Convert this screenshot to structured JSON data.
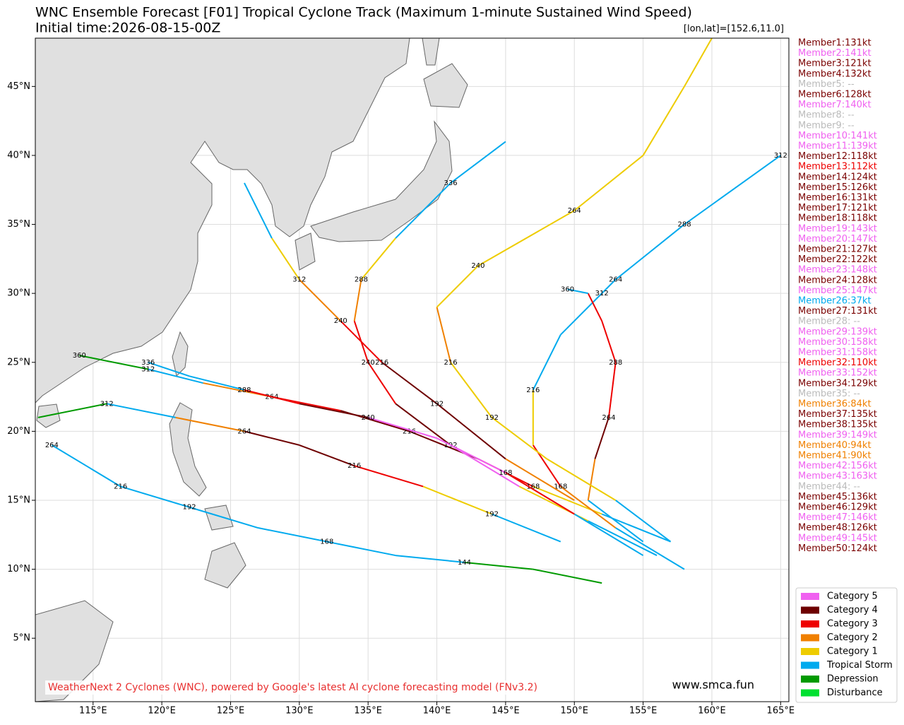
{
  "chart_data": {
    "type": "track-map",
    "title": "WNC Ensemble Forecast [F01] Tropical Cyclone Track (Maximum 1-minute Sustained Wind Speed)",
    "subtitle": "Initial time:2026-08-15-00Z",
    "cursor": "[lon,lat]=[152.6,11.0]",
    "credit": "WeatherNext 2 Cyclones (WNC), powered by Google's latest AI cyclone forecasting model (FNv3.2)",
    "site": "www.smca.fun",
    "xlim": [
      110.8,
      165.6
    ],
    "ylim": [
      0.4,
      48.5
    ],
    "grid": true,
    "xticks": [
      {
        "value": 115,
        "label": "115°E"
      },
      {
        "value": 120,
        "label": "120°E"
      },
      {
        "value": 125,
        "label": "125°E"
      },
      {
        "value": 130,
        "label": "130°E"
      },
      {
        "value": 135,
        "label": "135°E"
      },
      {
        "value": 140,
        "label": "140°E"
      },
      {
        "value": 145,
        "label": "145°E"
      },
      {
        "value": 150,
        "label": "150°E"
      },
      {
        "value": 155,
        "label": "155°E"
      },
      {
        "value": 160,
        "label": "160°E"
      },
      {
        "value": 165,
        "label": "165°E"
      }
    ],
    "yticks": [
      {
        "value": 5,
        "label": "5°N"
      },
      {
        "value": 10,
        "label": "10°N"
      },
      {
        "value": 15,
        "label": "15°N"
      },
      {
        "value": 20,
        "label": "20°N"
      },
      {
        "value": 25,
        "label": "25°N"
      },
      {
        "value": 30,
        "label": "30°N"
      },
      {
        "value": 35,
        "label": "35°N"
      },
      {
        "value": 40,
        "label": "40°N"
      },
      {
        "value": 45,
        "label": "45°N"
      }
    ],
    "legend": [
      {
        "name": "Category 5",
        "color": "#f060f0"
      },
      {
        "name": "Category 4",
        "color": "#6e0000"
      },
      {
        "name": "Category 3",
        "color": "#ee0000"
      },
      {
        "name": "Category 2",
        "color": "#f08000"
      },
      {
        "name": "Category 1",
        "color": "#eecc00"
      },
      {
        "name": "Tropical Storm",
        "color": "#00aaee"
      },
      {
        "name": "Depression",
        "color": "#009a00"
      },
      {
        "name": "Disturbance",
        "color": "#00e030"
      }
    ],
    "members": [
      {
        "text": "Member1:131kt",
        "color": "#7a0000"
      },
      {
        "text": "Member2:141kt",
        "color": "#f060f0"
      },
      {
        "text": "Member3:121kt",
        "color": "#7a0000"
      },
      {
        "text": "Member4:132kt",
        "color": "#7a0000"
      },
      {
        "text": "Member5: --",
        "color": "#bbbbbb"
      },
      {
        "text": "Member6:128kt",
        "color": "#7a0000"
      },
      {
        "text": "Member7:140kt",
        "color": "#f060f0"
      },
      {
        "text": "Member8: --",
        "color": "#bbbbbb"
      },
      {
        "text": "Member9: --",
        "color": "#bbbbbb"
      },
      {
        "text": "Member10:141kt",
        "color": "#f060f0"
      },
      {
        "text": "Member11:139kt",
        "color": "#f060f0"
      },
      {
        "text": "Member12:118kt",
        "color": "#7a0000"
      },
      {
        "text": "Member13:112kt",
        "color": "#ee0000"
      },
      {
        "text": "Member14:124kt",
        "color": "#7a0000"
      },
      {
        "text": "Member15:126kt",
        "color": "#7a0000"
      },
      {
        "text": "Member16:131kt",
        "color": "#7a0000"
      },
      {
        "text": "Member17:121kt",
        "color": "#7a0000"
      },
      {
        "text": "Member18:118kt",
        "color": "#7a0000"
      },
      {
        "text": "Member19:143kt",
        "color": "#f060f0"
      },
      {
        "text": "Member20:147kt",
        "color": "#f060f0"
      },
      {
        "text": "Member21:127kt",
        "color": "#7a0000"
      },
      {
        "text": "Member22:122kt",
        "color": "#7a0000"
      },
      {
        "text": "Member23:148kt",
        "color": "#f060f0"
      },
      {
        "text": "Member24:128kt",
        "color": "#7a0000"
      },
      {
        "text": "Member25:147kt",
        "color": "#f060f0"
      },
      {
        "text": "Member26:37kt",
        "color": "#00aaee"
      },
      {
        "text": "Member27:131kt",
        "color": "#7a0000"
      },
      {
        "text": "Member28: --",
        "color": "#bbbbbb"
      },
      {
        "text": "Member29:139kt",
        "color": "#f060f0"
      },
      {
        "text": "Member30:158kt",
        "color": "#f060f0"
      },
      {
        "text": "Member31:158kt",
        "color": "#f060f0"
      },
      {
        "text": "Member32:110kt",
        "color": "#ee0000"
      },
      {
        "text": "Member33:152kt",
        "color": "#f060f0"
      },
      {
        "text": "Member34:129kt",
        "color": "#7a0000"
      },
      {
        "text": "Member35: --",
        "color": "#bbbbbb"
      },
      {
        "text": "Member36:84kt",
        "color": "#f08000"
      },
      {
        "text": "Member37:135kt",
        "color": "#7a0000"
      },
      {
        "text": "Member38:135kt",
        "color": "#7a0000"
      },
      {
        "text": "Member39:149kt",
        "color": "#f060f0"
      },
      {
        "text": "Member40:94kt",
        "color": "#f08000"
      },
      {
        "text": "Member41:90kt",
        "color": "#f08000"
      },
      {
        "text": "Member42:156kt",
        "color": "#f060f0"
      },
      {
        "text": "Member43:163kt",
        "color": "#f060f0"
      },
      {
        "text": "Member44: --",
        "color": "#bbbbbb"
      },
      {
        "text": "Member45:136kt",
        "color": "#7a0000"
      },
      {
        "text": "Member46:129kt",
        "color": "#7a0000"
      },
      {
        "text": "Member47:146kt",
        "color": "#f060f0"
      },
      {
        "text": "Member48:126kt",
        "color": "#7a0000"
      },
      {
        "text": "Member49:145kt",
        "color": "#f060f0"
      },
      {
        "text": "Member50:124kt",
        "color": "#7a0000"
      }
    ],
    "tracks": [
      {
        "points": [
          [
            157,
            12,
            6
          ],
          [
            152,
            14,
            5
          ],
          [
            147,
            16,
            4
          ],
          [
            143,
            18,
            2
          ],
          [
            138,
            20,
            1
          ],
          [
            133,
            21.5,
            1
          ],
          [
            128,
            22.5,
            2
          ],
          [
            123,
            23.5,
            3
          ],
          [
            119,
            24.5,
            5
          ],
          [
            114,
            25.5,
            6
          ]
        ],
        "labels": [
          [
            147,
            16,
            168
          ],
          [
            138,
            20,
            216
          ],
          [
            128,
            22.5,
            264
          ],
          [
            119,
            24.5,
            312
          ],
          [
            114,
            25.5,
            360
          ]
        ]
      },
      {
        "points": [
          [
            156,
            11,
            6
          ],
          [
            151,
            13.5,
            5
          ],
          [
            146,
            16,
            4
          ],
          [
            141,
            19,
            0
          ],
          [
            137,
            22,
            1
          ],
          [
            135,
            25,
            2
          ],
          [
            134,
            28,
            2
          ],
          [
            134.5,
            31,
            3
          ],
          [
            137,
            34,
            4
          ],
          [
            141,
            38,
            5
          ],
          [
            145,
            41,
            5
          ]
        ],
        "labels": [
          [
            141,
            19,
            192
          ],
          [
            135,
            25,
            240
          ],
          [
            134.5,
            31,
            288
          ],
          [
            141,
            38,
            336
          ]
        ]
      },
      {
        "points": [
          [
            158,
            10,
            6
          ],
          [
            153,
            13,
            5
          ],
          [
            149,
            16,
            3
          ],
          [
            147,
            19,
            2
          ],
          [
            147,
            23,
            4
          ],
          [
            149,
            27,
            5
          ],
          [
            153,
            31,
            5
          ],
          [
            158,
            35,
            5
          ],
          [
            165,
            40,
            5
          ]
        ],
        "labels": [
          [
            149,
            16,
            168
          ],
          [
            147,
            23,
            216
          ],
          [
            153,
            31,
            264
          ],
          [
            158,
            35,
            288
          ],
          [
            165,
            40,
            312
          ]
        ]
      },
      {
        "points": [
          [
            155,
            12,
            6
          ],
          [
            151,
            15,
            5
          ],
          [
            151.5,
            18,
            3
          ],
          [
            152.5,
            21,
            1
          ],
          [
            153,
            25,
            2
          ],
          [
            152,
            28,
            2
          ],
          [
            151,
            30,
            2
          ],
          [
            149.5,
            30.3,
            5
          ]
        ],
        "labels": [
          [
            152.5,
            21,
            264
          ],
          [
            153,
            25,
            288
          ],
          [
            152,
            30,
            312
          ],
          [
            149.5,
            30.3,
            360
          ]
        ]
      },
      {
        "points": [
          [
            152,
            9,
            6
          ],
          [
            147,
            10,
            6
          ],
          [
            142,
            10.5,
            6
          ],
          [
            137,
            11,
            5
          ],
          [
            132,
            12,
            5
          ],
          [
            127,
            13,
            5
          ],
          [
            122,
            14.5,
            5
          ],
          [
            117,
            16,
            5
          ],
          [
            112,
            19,
            5
          ]
        ],
        "labels": [
          [
            142,
            10.5,
            144
          ],
          [
            132,
            12,
            168
          ],
          [
            122,
            14.5,
            192
          ],
          [
            117,
            16,
            216
          ],
          [
            112,
            19,
            264
          ]
        ]
      },
      {
        "points": [
          [
            157,
            12,
            6
          ],
          [
            153,
            15,
            5
          ],
          [
            148,
            18,
            4
          ],
          [
            144,
            21,
            4
          ],
          [
            141,
            25,
            4
          ],
          [
            140,
            29,
            3
          ],
          [
            143,
            32,
            4
          ],
          [
            150,
            36,
            4
          ],
          [
            155,
            40,
            4
          ],
          [
            158,
            45,
            4
          ],
          [
            160,
            48.5,
            4
          ]
        ],
        "labels": [
          [
            144,
            21,
            192
          ],
          [
            141,
            25,
            216
          ],
          [
            143,
            32,
            240
          ],
          [
            150,
            36,
            264
          ]
        ]
      },
      {
        "points": [
          [
            155,
            11,
            6
          ],
          [
            150,
            14,
            5
          ],
          [
            145,
            17,
            2
          ],
          [
            140,
            19.5,
            0
          ],
          [
            135,
            21,
            0
          ],
          [
            130,
            22,
            1
          ],
          [
            126,
            23,
            2
          ],
          [
            122,
            24,
            5
          ],
          [
            119,
            25,
            5
          ]
        ],
        "labels": [
          [
            145,
            17,
            168
          ],
          [
            135,
            21,
            240
          ],
          [
            126,
            23,
            288
          ],
          [
            119,
            25,
            336
          ]
        ]
      },
      {
        "points": [
          [
            149,
            12,
            6
          ],
          [
            144,
            14,
            5
          ],
          [
            139,
            16,
            4
          ],
          [
            134,
            17.5,
            2
          ],
          [
            130,
            19,
            1
          ],
          [
            126,
            20,
            1
          ],
          [
            121,
            21,
            3
          ],
          [
            116,
            22,
            5
          ],
          [
            111,
            21,
            6
          ]
        ],
        "labels": [
          [
            144,
            14,
            192
          ],
          [
            134,
            17.5,
            216
          ],
          [
            126,
            20,
            264
          ],
          [
            116,
            22,
            312
          ]
        ]
      },
      {
        "points": [
          [
            150,
            15,
            5
          ],
          [
            145,
            18,
            3
          ],
          [
            140,
            22,
            1
          ],
          [
            136,
            25,
            1
          ],
          [
            133,
            28,
            2
          ],
          [
            130,
            31,
            3
          ],
          [
            128,
            34,
            4
          ],
          [
            126,
            38,
            5
          ]
        ],
        "labels": [
          [
            140,
            22,
            192
          ],
          [
            136,
            25,
            216
          ],
          [
            133,
            28,
            240
          ],
          [
            130,
            31,
            312
          ]
        ]
      }
    ]
  }
}
